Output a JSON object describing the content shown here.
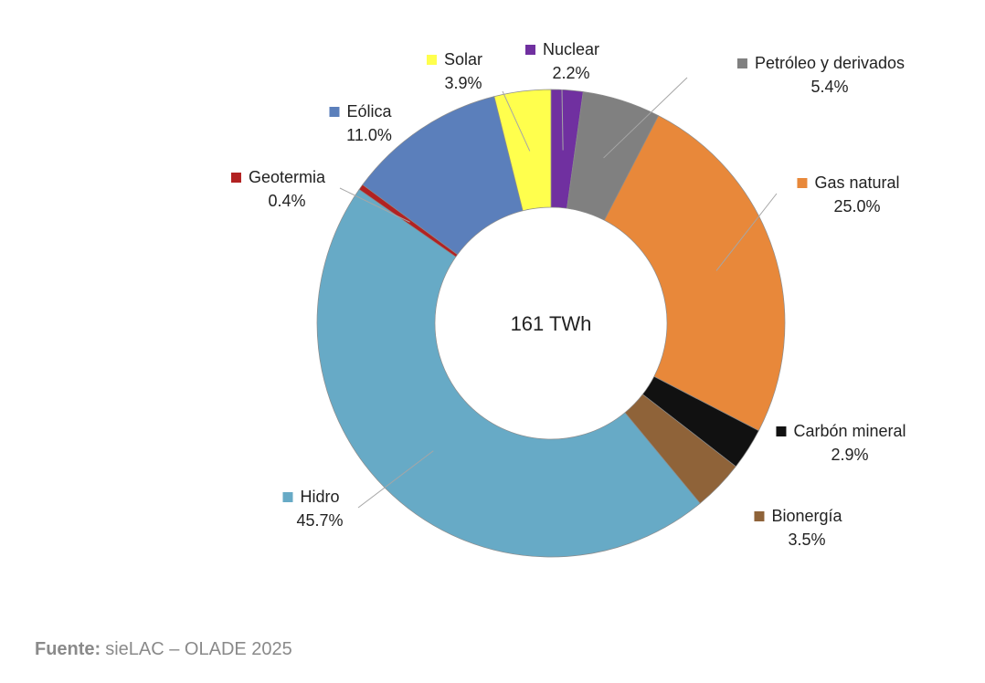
{
  "chart_data": {
    "type": "donut",
    "center_label": "161 TWh",
    "categories": [
      "Nuclear",
      "Petróleo y derivados",
      "Gas natural",
      "Carbón mineral",
      "Bionergía",
      "Hidro",
      "Geotermia",
      "Eólica",
      "Solar"
    ],
    "values": [
      2.2,
      5.4,
      25,
      2.9,
      3.5,
      45.7,
      0.4,
      11,
      3.9
    ],
    "value_labels": [
      "2.2%",
      "5.4%",
      "25.0%",
      "2.9%",
      "3.5%",
      "45.7%",
      "0.4%",
      "11.0%",
      "3.9%"
    ],
    "colors": [
      "#7030a0",
      "#808080",
      "#e8883a",
      "#111111",
      "#8f6339",
      "#67aac6",
      "#b22222",
      "#5b7fbb",
      "#ffff4d"
    ]
  },
  "footer": {
    "label": "Fuente:",
    "text": "sieLAC – OLADE 2025"
  }
}
